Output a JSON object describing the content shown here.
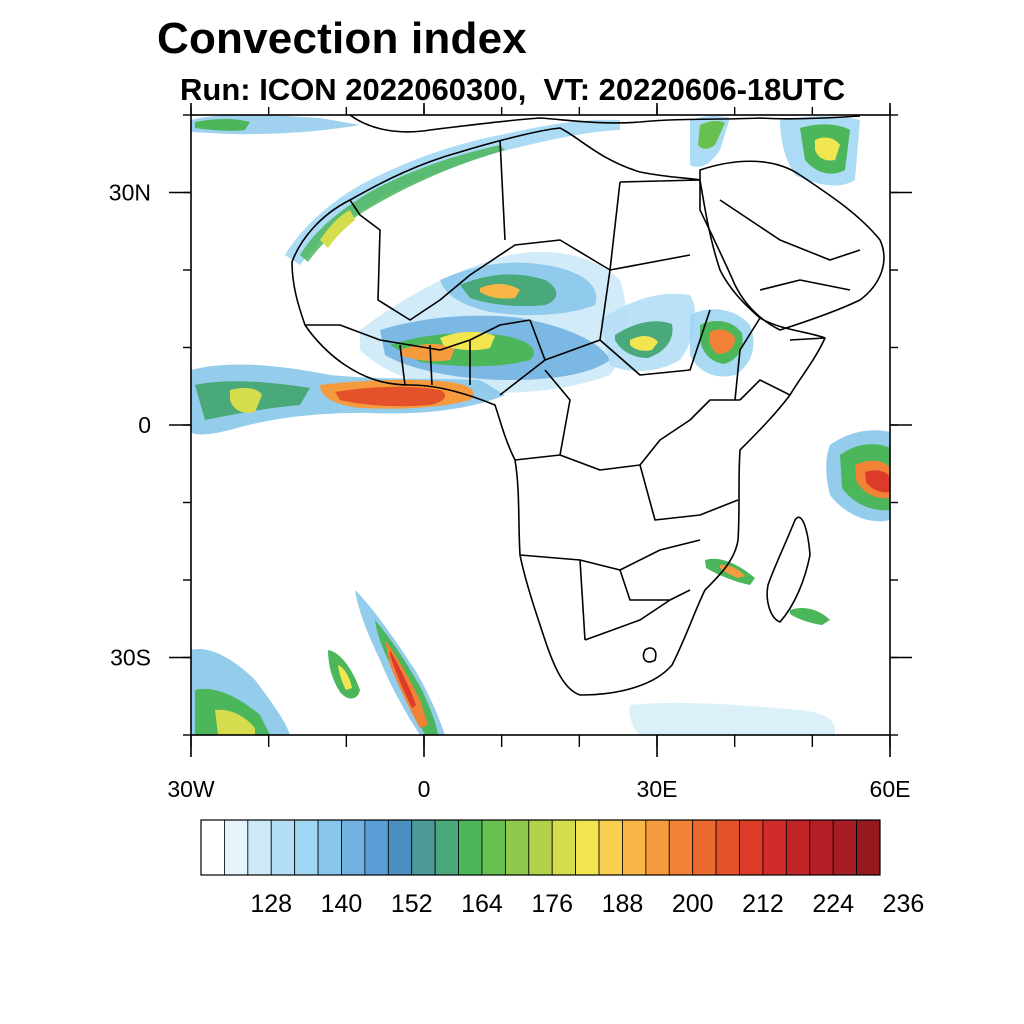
{
  "title": "Convection index",
  "subtitle": "Run: ICON 2022060300,  VT: 20220606-18UTC",
  "map": {
    "lon_range": [
      -30,
      60
    ],
    "lat_range": [
      -40,
      40
    ],
    "x_ticks": [
      {
        "lon": -30,
        "label": "30W"
      },
      {
        "lon": 0,
        "label": "0"
      },
      {
        "lon": 30,
        "label": "30E"
      },
      {
        "lon": 60,
        "label": "60E"
      }
    ],
    "y_ticks": [
      {
        "lat": 30,
        "label": "30N"
      },
      {
        "lat": 0,
        "label": "0"
      },
      {
        "lat": -30,
        "label": "30S"
      }
    ]
  },
  "colorbar": {
    "colors": [
      "#ffffff",
      "#e6f4fc",
      "#cde9f8",
      "#b4def5",
      "#9ed6f3",
      "#88c6ea",
      "#72b2e1",
      "#5b9dd6",
      "#4a8fbf",
      "#4b9a99",
      "#4aa97a",
      "#4bb65a",
      "#67c04f",
      "#8ec84d",
      "#b3d14b",
      "#d6dd4d",
      "#f2e650",
      "#f8cf4e",
      "#f7b646",
      "#f59b3d",
      "#f28235",
      "#ec6a2f",
      "#e4522b",
      "#dc3b2a",
      "#d22c2a",
      "#c32428",
      "#b41f25",
      "#a51c22",
      "#951a1f"
    ],
    "labels": [
      "128",
      "140",
      "152",
      "164",
      "176",
      "188",
      "200",
      "212",
      "224",
      "236"
    ]
  }
}
